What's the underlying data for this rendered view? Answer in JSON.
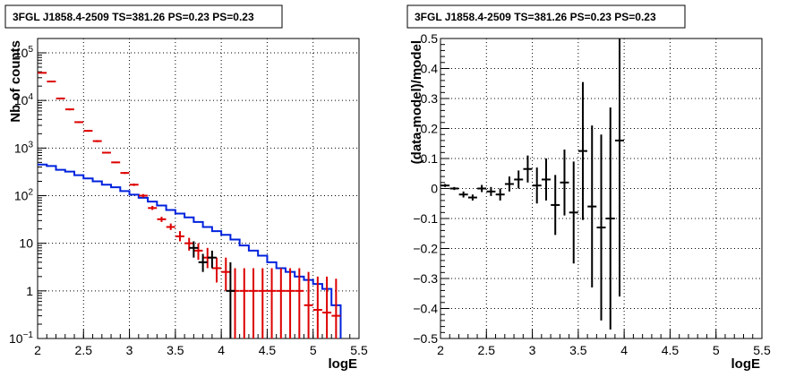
{
  "chart_data": [
    {
      "type": "line",
      "title": "3FGL J1858.4-2509 TS=381.26 PS=0.23 PS=0.23",
      "xlabel": "logE",
      "ylabel": "Nb of counts",
      "xlim": [
        2,
        5.5
      ],
      "ylim": [
        0.1,
        200000
      ],
      "y_scale": "log",
      "grid": true,
      "x_ticks": [
        "2",
        "2.5",
        "3",
        "3.5",
        "4",
        "4.5",
        "5",
        "5.5"
      ],
      "y_ticks": [
        {
          "v": 0.1,
          "label": "10",
          "exp": "−1"
        },
        {
          "v": 1,
          "label": "1",
          "exp": ""
        },
        {
          "v": 10,
          "label": "10",
          "exp": ""
        },
        {
          "v": 100,
          "label": "10",
          "exp": "2"
        },
        {
          "v": 1000,
          "label": "10",
          "exp": "3"
        },
        {
          "v": 10000,
          "label": "10",
          "exp": "4"
        },
        {
          "v": 100000,
          "label": "10",
          "exp": "5"
        }
      ],
      "colors": {
        "data": "#dd0000",
        "model": "#0022dd",
        "black": "#000000"
      },
      "x_bin_edges": [
        2.0,
        2.1,
        2.2,
        2.3,
        2.4,
        2.5,
        2.6,
        2.7,
        2.8,
        2.9,
        3.0,
        3.1,
        3.2,
        3.3,
        3.4,
        3.5,
        3.6,
        3.7,
        3.8,
        3.9,
        4.0,
        4.1,
        4.2,
        4.3,
        4.4,
        4.5,
        4.6,
        4.7,
        4.8,
        4.9,
        5.0,
        5.1,
        5.2,
        5.3
      ],
      "series": [
        {
          "color": "red",
          "style": "points-with-errors",
          "x": [
            2.05,
            2.15,
            2.25,
            2.35,
            2.45,
            2.55,
            2.65,
            2.75,
            2.85,
            2.95,
            3.05,
            3.15,
            3.25,
            3.35,
            3.45,
            3.55,
            3.65,
            3.75,
            3.85,
            3.95,
            4.05,
            4.15,
            4.25,
            4.35,
            4.45,
            4.55,
            4.65,
            4.75,
            4.85,
            4.95,
            5.05,
            5.15,
            5.25
          ],
          "y": [
            38000,
            25000,
            11000,
            6500,
            3500,
            2300,
            1400,
            800,
            500,
            300,
            170,
            100,
            55,
            32,
            22,
            14,
            10,
            7,
            5,
            3,
            2.5,
            1,
            1,
            1,
            1,
            1,
            1,
            1,
            1,
            0.5,
            0.4,
            0.35,
            0.3
          ],
          "y_low": [
            37000,
            24000,
            10500,
            6200,
            3350,
            2200,
            1330,
            770,
            480,
            285,
            160,
            92,
            50,
            28,
            19,
            11,
            7,
            4.5,
            3,
            1.5,
            1,
            0.1,
            0.1,
            0.1,
            0.1,
            0.1,
            0.1,
            0.1,
            0.1,
            0.1,
            0.1,
            0.1,
            0.1
          ],
          "y_high": [
            39000,
            26000,
            11500,
            6800,
            3650,
            2400,
            1470,
            830,
            520,
            315,
            180,
            108,
            61,
            36,
            26,
            18,
            13,
            10,
            8,
            5,
            5,
            3,
            3,
            3,
            3,
            3,
            3,
            3,
            3,
            2.5,
            2,
            2,
            1.8
          ]
        },
        {
          "color": "blue",
          "style": "step",
          "y": [
            450,
            420,
            350,
            320,
            270,
            230,
            200,
            170,
            150,
            125,
            105,
            90,
            75,
            62,
            50,
            42,
            35,
            28,
            22,
            18,
            15,
            12,
            9,
            7,
            5.5,
            4,
            3,
            2.5,
            2,
            1.7,
            1.4,
            1.1,
            0.5,
            0.1
          ]
        },
        {
          "color": "black",
          "style": "points-with-errors",
          "x": [
            3.7,
            3.8,
            3.9,
            4.1
          ],
          "y": [
            8,
            4,
            5,
            1
          ],
          "y_low": [
            5,
            2.5,
            3,
            0.1
          ],
          "y_high": [
            11,
            6,
            7,
            4
          ]
        }
      ]
    },
    {
      "type": "scatter",
      "title": "3FGL J1858.4-2509 TS=381.26 PS=0.23 PS=0.23",
      "xlabel": "logE",
      "ylabel": "(data-model)/model",
      "xlim": [
        2,
        5.5
      ],
      "ylim": [
        -0.5,
        0.5
      ],
      "grid": true,
      "x_ticks": [
        "2",
        "2.5",
        "3",
        "3.5",
        "4",
        "4.5",
        "5",
        "5.5"
      ],
      "y_ticks": [
        "−0.5",
        "−0.4",
        "−0.3",
        "−0.2",
        "−0.1",
        "0",
        "0.1",
        "0.2",
        "0.3",
        "0.4",
        "0.5"
      ],
      "points": {
        "x": [
          2.05,
          2.15,
          2.25,
          2.35,
          2.45,
          2.55,
          2.65,
          2.75,
          2.85,
          2.95,
          3.05,
          3.15,
          3.25,
          3.35,
          3.45,
          3.55,
          3.65,
          3.75,
          3.85,
          3.95
        ],
        "y": [
          0.01,
          0.0,
          -0.02,
          -0.03,
          0.0,
          -0.01,
          -0.02,
          0.015,
          0.03,
          0.065,
          0.01,
          0.03,
          -0.055,
          0.02,
          -0.08,
          0.125,
          -0.06,
          -0.13,
          -0.1,
          0.16
        ],
        "y_err": [
          0.005,
          0.005,
          0.01,
          0.01,
          0.012,
          0.015,
          0.02,
          0.025,
          0.03,
          0.045,
          0.06,
          0.07,
          0.1,
          0.11,
          0.17,
          0.23,
          0.27,
          0.31,
          0.37,
          0.52
        ]
      }
    }
  ]
}
